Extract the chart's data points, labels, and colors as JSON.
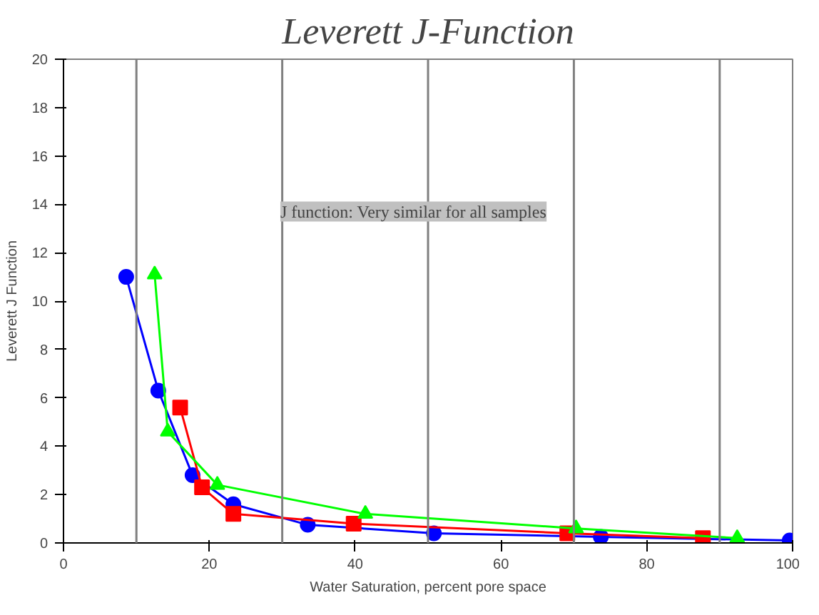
{
  "chart_data": {
    "type": "line",
    "title": "Leverett J-Function",
    "xlabel": "Water Saturation, percent pore space",
    "ylabel": "Leverett J Function",
    "annotations": [
      "J function: Very similar for all samples"
    ],
    "series": [
      {
        "color": "#0000ff",
        "marker": "circle",
        "x": [
          8.6,
          13,
          17.7,
          23.3,
          33.5,
          50.8,
          73.7,
          99.6
        ],
        "values": [
          11.0,
          6.3,
          2.8,
          1.6,
          0.75,
          0.4,
          0.25,
          0.1
        ]
      },
      {
        "color": "#ff0000",
        "marker": "square",
        "x": [
          16,
          19,
          23.3,
          39.8,
          69.1,
          87.7
        ],
        "values": [
          5.6,
          2.3,
          1.2,
          0.8,
          0.4,
          0.2
        ]
      },
      {
        "color": "#00ff00",
        "marker": "triangle",
        "x": [
          12.5,
          14.3,
          21.1,
          41.4,
          70.3,
          92.4
        ],
        "values": [
          11.1,
          4.6,
          2.4,
          1.2,
          0.6,
          0.2
        ]
      }
    ],
    "xlim": [
      0,
      100
    ],
    "ylim": [
      0,
      20
    ],
    "xticks": [
      0,
      20,
      40,
      60,
      80,
      100
    ],
    "yticks": [
      0,
      2,
      4,
      6,
      8,
      10,
      12,
      14,
      16,
      18,
      20
    ],
    "ref_lines": [
      {
        "axis": "x",
        "value": 10,
        "color": "#808080"
      },
      {
        "axis": "x",
        "value": 30,
        "color": "#808080"
      },
      {
        "axis": "x",
        "value": 50,
        "color": "#808080"
      },
      {
        "axis": "x",
        "value": 70,
        "color": "#808080"
      },
      {
        "axis": "x",
        "value": 90,
        "color": "#808080"
      }
    ],
    "line_style": "solid"
  }
}
